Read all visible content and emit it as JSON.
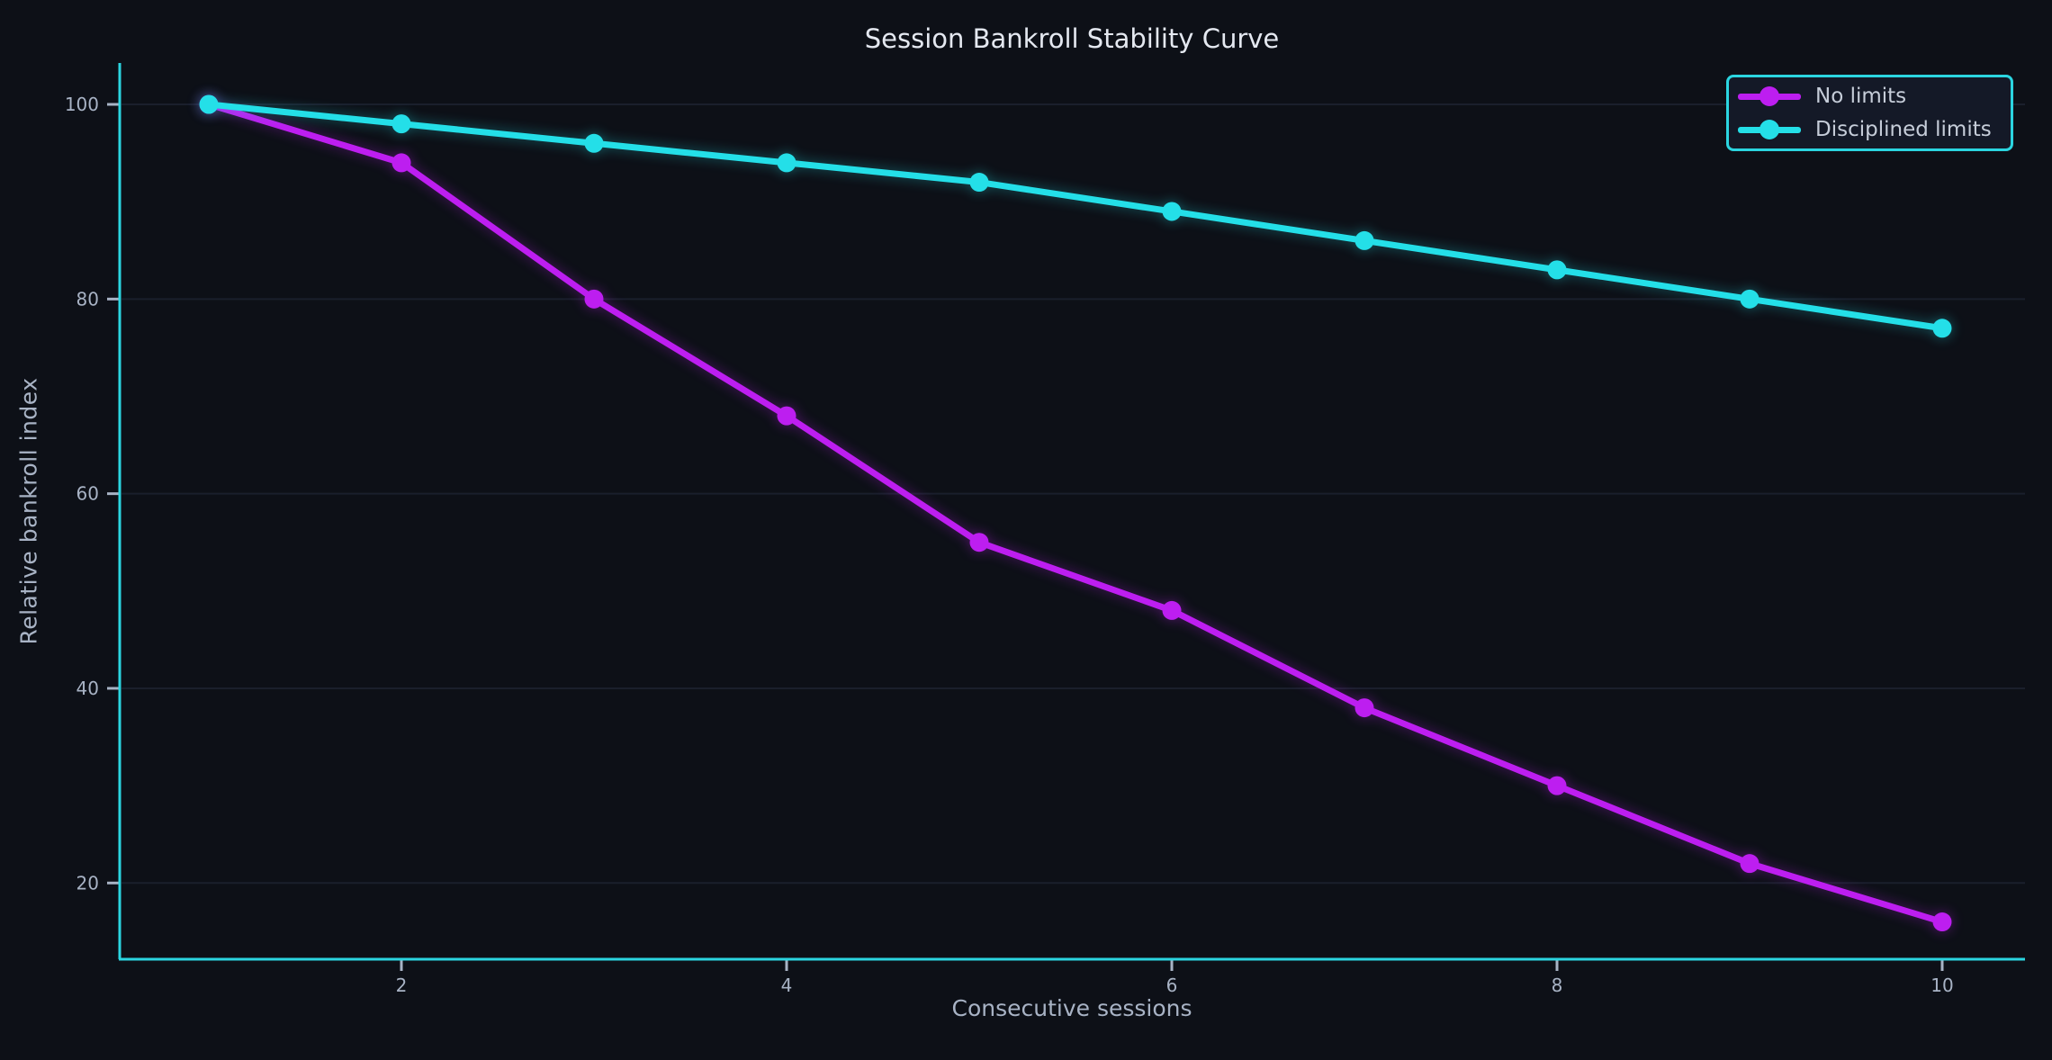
{
  "chart_data": {
    "type": "line",
    "title": "Session Bankroll Stability Curve",
    "xlabel": "Consecutive sessions",
    "ylabel": "Relative bankroll index",
    "x": [
      1,
      2,
      3,
      4,
      5,
      6,
      7,
      8,
      9,
      10
    ],
    "series": [
      {
        "name": "No limits",
        "color": "#bd1ef0",
        "values": [
          100,
          94,
          80,
          68,
          55,
          48,
          38,
          30,
          22,
          16
        ]
      },
      {
        "name": "Disciplined limits",
        "color": "#24dfe8",
        "values": [
          100,
          98,
          96,
          94,
          92,
          89,
          86,
          83,
          80,
          77
        ]
      }
    ],
    "xticks": [
      2,
      4,
      6,
      8,
      10
    ],
    "yticks": [
      20,
      40,
      60,
      80,
      100
    ],
    "xlim": [
      0.54,
      10.43
    ],
    "ylim": [
      12.2,
      104.3
    ],
    "grid": "horizontal-only",
    "legend_position": "upper-right",
    "style": {
      "background": "#0d1017",
      "axis_color": "#2bd5e0",
      "grid_color": "#1a1f2c",
      "tick_color": "#a8b3c5",
      "tick_label_color": "#a8b3c5",
      "title_color": "#e4e8f0",
      "legend_bg": "#141927",
      "legend_border": "#2bd5e0",
      "legend_text": "#c6cdd9"
    }
  }
}
